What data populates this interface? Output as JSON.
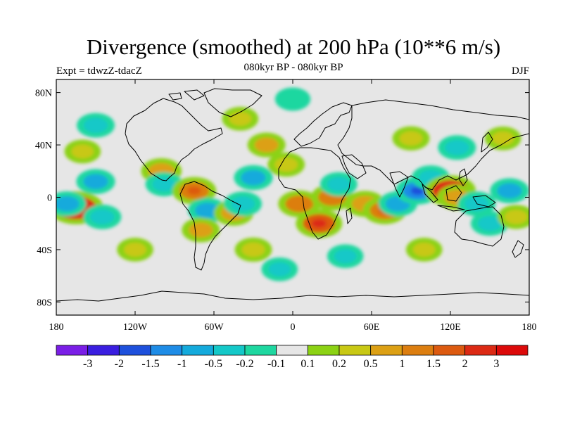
{
  "title": "Divergence (smoothed) at 200 hPa (10**6 m/s)",
  "subtitle": "080kyr BP - 080kyr BP",
  "experiment": "Expt = tdwzZ-tdacZ",
  "season": "DJF",
  "map": {
    "projection": "cylindrical-equidistant",
    "lon_range": [
      -180,
      180
    ],
    "lat_range": [
      -90,
      90
    ],
    "background_color": "#e6e6e6",
    "coastline_color": "#000000",
    "lat_ticks": [
      {
        "lat": 80,
        "label": "80N"
      },
      {
        "lat": 40,
        "label": "40N"
      },
      {
        "lat": 0,
        "label": "0"
      },
      {
        "lat": -40,
        "label": "40S"
      },
      {
        "lat": -80,
        "label": "80S"
      }
    ],
    "lon_ticks": [
      {
        "lon": -180,
        "label": "180"
      },
      {
        "lon": -120,
        "label": "120W"
      },
      {
        "lon": -60,
        "label": "60W"
      },
      {
        "lon": 0,
        "label": "0"
      },
      {
        "lon": 60,
        "label": "60E"
      },
      {
        "lon": 120,
        "label": "120E"
      },
      {
        "lon": 180,
        "label": "180"
      }
    ]
  },
  "colorbar": {
    "colors": [
      "#7a1ee6",
      "#3a1ee0",
      "#1e50dc",
      "#1e8ce6",
      "#14aadc",
      "#14c8c8",
      "#1ed7a0",
      "#e6e6e6",
      "#8cd214",
      "#c8c814",
      "#dca014",
      "#dc7e10",
      "#dc5a10",
      "#dc2a14",
      "#dc0a0a"
    ],
    "labels": [
      "-3",
      "-2",
      "-1.5",
      "-1",
      "-0.5",
      "-0.2",
      "-0.1",
      "0.1",
      "0.2",
      "0.5",
      "1",
      "1.5",
      "2",
      "3"
    ]
  },
  "chart_data": {
    "type": "heatmap",
    "title": "Divergence (smoothed) at 200 hPa (10**6 m/s)",
    "subtitle": "080kyr BP - 080kyr BP",
    "units": "10**6 m/s",
    "levels": [
      -3,
      -2,
      -1.5,
      -1,
      -0.5,
      -0.2,
      -0.1,
      0.1,
      0.2,
      0.5,
      1,
      1.5,
      2,
      3
    ],
    "grid": false,
    "features": [
      {
        "lon": -165,
        "lat": -8,
        "value": 2.5
      },
      {
        "lon": -172,
        "lat": -5,
        "value": -0.6
      },
      {
        "lon": -150,
        "lat": 12,
        "value": -0.6
      },
      {
        "lon": -145,
        "lat": -15,
        "value": -0.5
      },
      {
        "lon": -160,
        "lat": 35,
        "value": 0.3
      },
      {
        "lon": -150,
        "lat": 55,
        "value": -0.5
      },
      {
        "lon": -100,
        "lat": 20,
        "value": 0.8
      },
      {
        "lon": -98,
        "lat": 10,
        "value": -0.4
      },
      {
        "lon": -75,
        "lat": 5,
        "value": 1.2
      },
      {
        "lon": -65,
        "lat": -10,
        "value": -0.6
      },
      {
        "lon": -70,
        "lat": -25,
        "value": 0.5
      },
      {
        "lon": -45,
        "lat": -12,
        "value": 0.7
      },
      {
        "lon": -38,
        "lat": -5,
        "value": -0.5
      },
      {
        "lon": -30,
        "lat": 15,
        "value": -0.6
      },
      {
        "lon": -20,
        "lat": 40,
        "value": 0.5
      },
      {
        "lon": -5,
        "lat": 25,
        "value": 0.4
      },
      {
        "lon": 5,
        "lat": -5,
        "value": 1.0
      },
      {
        "lon": 20,
        "lat": -20,
        "value": 1.5
      },
      {
        "lon": 30,
        "lat": 0,
        "value": 1.0
      },
      {
        "lon": 35,
        "lat": 10,
        "value": -0.4
      },
      {
        "lon": 55,
        "lat": -5,
        "value": 0.8
      },
      {
        "lon": 70,
        "lat": -10,
        "value": 1.2
      },
      {
        "lon": 80,
        "lat": -5,
        "value": -0.6
      },
      {
        "lon": 95,
        "lat": 5,
        "value": -1.2
      },
      {
        "lon": 105,
        "lat": 15,
        "value": -0.5
      },
      {
        "lon": 120,
        "lat": 5,
        "value": 2.0
      },
      {
        "lon": 125,
        "lat": 0,
        "value": 0.7
      },
      {
        "lon": 140,
        "lat": -5,
        "value": -0.5
      },
      {
        "lon": 150,
        "lat": -20,
        "value": -0.5
      },
      {
        "lon": 165,
        "lat": 5,
        "value": -0.6
      },
      {
        "lon": 170,
        "lat": -15,
        "value": 0.4
      },
      {
        "lon": 90,
        "lat": 45,
        "value": 0.4
      },
      {
        "lon": 125,
        "lat": 38,
        "value": -0.5
      },
      {
        "lon": 160,
        "lat": 45,
        "value": 0.3
      },
      {
        "lon": 0,
        "lat": 75,
        "value": -0.2
      },
      {
        "lon": -40,
        "lat": 60,
        "value": 0.3
      },
      {
        "lon": -30,
        "lat": -40,
        "value": 0.4
      },
      {
        "lon": 40,
        "lat": -45,
        "value": -0.3
      },
      {
        "lon": 100,
        "lat": -40,
        "value": 0.3
      },
      {
        "lon": -120,
        "lat": -40,
        "value": 0.3
      },
      {
        "lon": -10,
        "lat": -55,
        "value": -0.3
      }
    ]
  }
}
